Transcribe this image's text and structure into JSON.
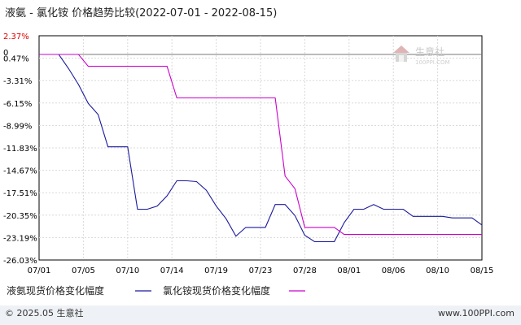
{
  "chart_data": {
    "type": "line",
    "title": "液氨 - 氯化铵 价格趋势比较(2022-07-01 - 2022-08-15)",
    "x": [
      "07/01",
      "07/02",
      "07/03",
      "07/04",
      "07/05",
      "07/06",
      "07/07",
      "07/08",
      "07/09",
      "07/10",
      "07/11",
      "07/12",
      "07/13",
      "07/14",
      "07/15",
      "07/16",
      "07/17",
      "07/18",
      "07/19",
      "07/20",
      "07/21",
      "07/22",
      "07/23",
      "07/24",
      "07/25",
      "07/26",
      "07/27",
      "07/28",
      "07/29",
      "07/30",
      "07/31",
      "08/01",
      "08/02",
      "08/03",
      "08/04",
      "08/05",
      "08/06",
      "08/07",
      "08/08",
      "08/09",
      "08/10",
      "08/11",
      "08/12",
      "08/13",
      "08/14",
      "08/15"
    ],
    "x_tick_labels": [
      "07/01",
      "07/05",
      "07/10",
      "07/14",
      "07/19",
      "07/23",
      "07/28",
      "08/01",
      "08/06",
      "08/10",
      "08/15"
    ],
    "y_tick_labels": [
      "2.37%",
      "0.47%",
      "-3.31%",
      "-6.15%",
      "-8.99%",
      "-11.83%",
      "-14.67%",
      "-17.51%",
      "-20.35%",
      "-23.19%",
      "-26.03%"
    ],
    "y_zero_label": "0",
    "ylim": [
      -26.03,
      2.37
    ],
    "grid": true,
    "legend_position": "bottom",
    "series": [
      {
        "name": "液氨现货价格变化幅度",
        "color": "#1a1a9c",
        "values": [
          0,
          0,
          0,
          -1.8,
          -3.8,
          -6.2,
          -7.6,
          -11.7,
          -11.7,
          -11.7,
          -19.6,
          -19.6,
          -19.2,
          -17.9,
          -16.0,
          -16.0,
          -16.1,
          -17.2,
          -19.2,
          -20.8,
          -23.0,
          -21.9,
          -21.9,
          -21.9,
          -19.0,
          -19.0,
          -20.4,
          -22.9,
          -23.7,
          -23.7,
          -23.7,
          -21.3,
          -19.6,
          -19.6,
          -19.0,
          -19.6,
          -19.6,
          -19.6,
          -20.5,
          -20.5,
          -20.5,
          -20.5,
          -20.7,
          -20.7,
          -20.7,
          -21.6
        ]
      },
      {
        "name": "氯化铵现货价格变化幅度",
        "color": "#cc00cc",
        "values": [
          0,
          0,
          0,
          0,
          0,
          -1.5,
          -1.5,
          -1.5,
          -1.5,
          -1.5,
          -1.5,
          -1.5,
          -1.5,
          -1.5,
          -5.5,
          -5.5,
          -5.5,
          -5.5,
          -5.5,
          -5.5,
          -5.5,
          -5.5,
          -5.5,
          -5.5,
          -5.5,
          -15.4,
          -17.0,
          -21.9,
          -21.9,
          -21.9,
          -21.9,
          -22.8,
          -22.8,
          -22.8,
          -22.8,
          -22.8,
          -22.8,
          -22.8,
          -22.8,
          -22.8,
          -22.8,
          -22.8,
          -22.8,
          -22.8,
          -22.8,
          -22.8
        ]
      }
    ]
  },
  "watermark": {
    "name": "生意社",
    "url": "100PPI.COM"
  },
  "footer": {
    "copyright": "© 2025.05 生意社",
    "website": "www.100PPI.com"
  }
}
